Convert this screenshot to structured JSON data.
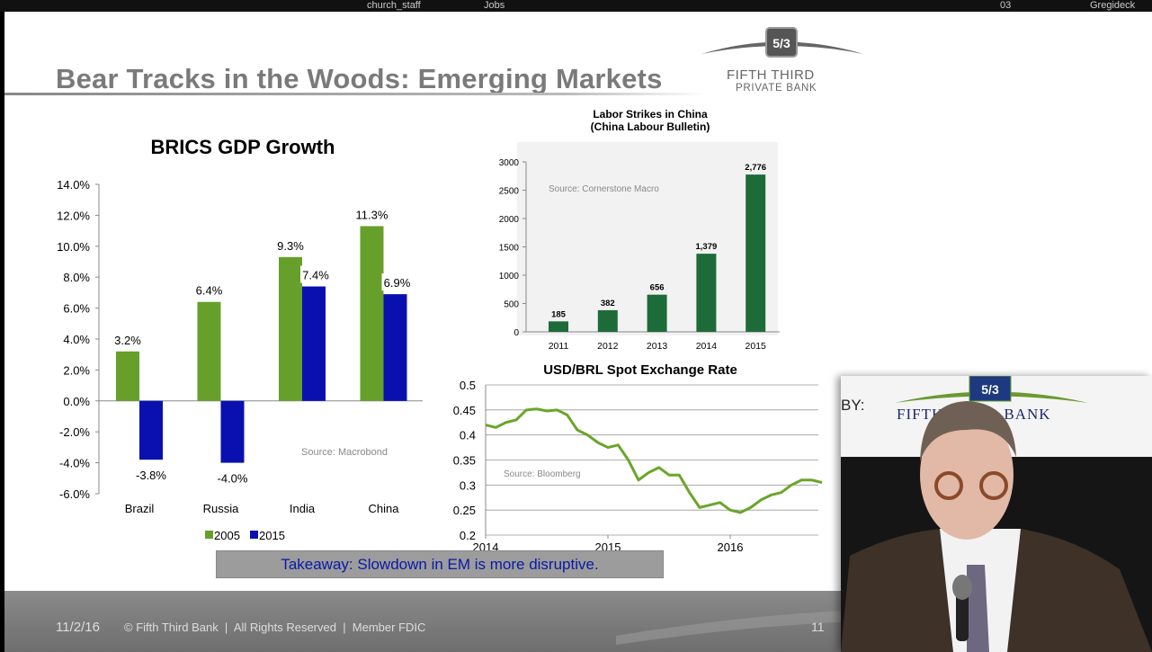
{
  "topbar": {
    "items": [
      "church_staff",
      "Jobs",
      "03",
      "Gregideck"
    ]
  },
  "slide": {
    "title": "Bear Tracks in the Woods: Emerging Markets",
    "logo": {
      "line1": "Fifth Third",
      "line2": "Private Bank",
      "mark": "5/3"
    },
    "takeaway": "Takeaway: Slowdown in EM is more disruptive.",
    "footer": {
      "date": "11/2/16",
      "copyright": "© Fifth Third Bank  |  All Rights Reserved  |  Member FDIC",
      "page": "11"
    }
  },
  "video": {
    "backdrop_text": "FIFTH THIRD BANK",
    "backdrop_prefix": "BY:"
  },
  "colors": {
    "green": "#66a02a",
    "blue": "#0a10b0",
    "dark_green": "#1e6b3a",
    "line_green": "#6aa52a"
  },
  "chart_data": [
    {
      "type": "bar",
      "title": "BRICS GDP Growth",
      "categories": [
        "Brazil",
        "Russia",
        "India",
        "China"
      ],
      "series": [
        {
          "name": "2005",
          "values": [
            3.2,
            6.4,
            9.3,
            11.3
          ],
          "labels": [
            "3.2%",
            "6.4%",
            "9.3%",
            "11.3%"
          ]
        },
        {
          "name": "2015",
          "values": [
            -3.8,
            -4.0,
            7.4,
            6.9
          ],
          "labels": [
            "-3.8%",
            "-4.0%",
            "7.4%",
            "6.9%"
          ]
        }
      ],
      "ylim": [
        -6,
        14
      ],
      "yticks": [
        "14.0%",
        "12.0%",
        "10.0%",
        "8.0%",
        "6.0%",
        "4.0%",
        "2.0%",
        "0.0%",
        "-2.0%",
        "-4.0%",
        "-6.0%"
      ],
      "annotation": "Source: Macrobond",
      "legend": "bottom",
      "grid": false
    },
    {
      "type": "bar",
      "title": "Labor Strikes in China",
      "subtitle": "(China Labour Bulletin)",
      "categories": [
        "2011",
        "2012",
        "2013",
        "2014",
        "2015"
      ],
      "values": [
        185,
        382,
        656,
        1379,
        2776
      ],
      "labels": [
        "185",
        "382",
        "656",
        "1,379",
        "2,776"
      ],
      "ylim": [
        0,
        3000
      ],
      "yticks": [
        "0",
        "500",
        "1000",
        "1500",
        "2000",
        "2500",
        "3000"
      ],
      "annotation": "Source: Cornerstone Macro",
      "grid": false
    },
    {
      "type": "line",
      "title": "USD/BRL Spot Exchange Rate",
      "ylim": [
        0.2,
        0.5
      ],
      "yticks": [
        "0.5",
        "0.45",
        "0.4",
        "0.35",
        "0.3",
        "0.25",
        "0.2"
      ],
      "xticks": [
        "2014",
        "2015",
        "2016"
      ],
      "annotation": "Source: Bloomberg",
      "grid": true,
      "x": [
        "2014-01",
        "2014-02",
        "2014-03",
        "2014-04",
        "2014-05",
        "2014-06",
        "2014-07",
        "2014-08",
        "2014-09",
        "2014-10",
        "2014-11",
        "2014-12",
        "2015-01",
        "2015-02",
        "2015-03",
        "2015-04",
        "2015-05",
        "2015-06",
        "2015-07",
        "2015-08",
        "2015-09",
        "2015-10",
        "2015-11",
        "2015-12",
        "2016-01",
        "2016-02",
        "2016-03",
        "2016-04",
        "2016-05",
        "2016-06",
        "2016-07",
        "2016-08",
        "2016-09",
        "2016-10"
      ],
      "y": [
        0.42,
        0.415,
        0.425,
        0.43,
        0.45,
        0.452,
        0.448,
        0.45,
        0.44,
        0.41,
        0.4,
        0.385,
        0.375,
        0.38,
        0.35,
        0.31,
        0.325,
        0.335,
        0.32,
        0.32,
        0.285,
        0.255,
        0.26,
        0.265,
        0.25,
        0.245,
        0.255,
        0.27,
        0.28,
        0.285,
        0.3,
        0.31,
        0.31,
        0.305
      ]
    }
  ]
}
